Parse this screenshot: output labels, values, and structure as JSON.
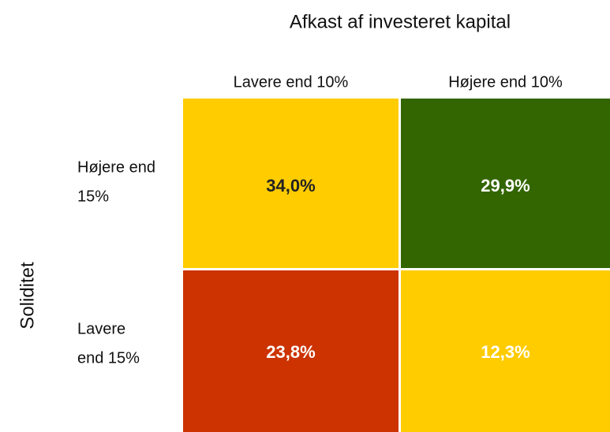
{
  "title": "Afkast af investeret kapital",
  "row_axis_label": "Soliditet",
  "columns": [
    "Lavere end 10%",
    "Højere end 10%"
  ],
  "rows": [
    {
      "label": [
        "Højere end",
        "15%"
      ],
      "cells": [
        {
          "text": "34,0%",
          "color": "#ffcc00",
          "text_color": "#222222"
        },
        {
          "text": "29,9%",
          "color": "#336600",
          "text_color": "#ffffff"
        }
      ]
    },
    {
      "label": [
        "Lavere",
        "end 15%"
      ],
      "cells": [
        {
          "text": "23,8%",
          "color": "#cc3300",
          "text_color": "#ffffff"
        },
        {
          "text": "12,3%",
          "color": "#ffcc00",
          "text_color": "#ffffff"
        }
      ]
    }
  ]
}
